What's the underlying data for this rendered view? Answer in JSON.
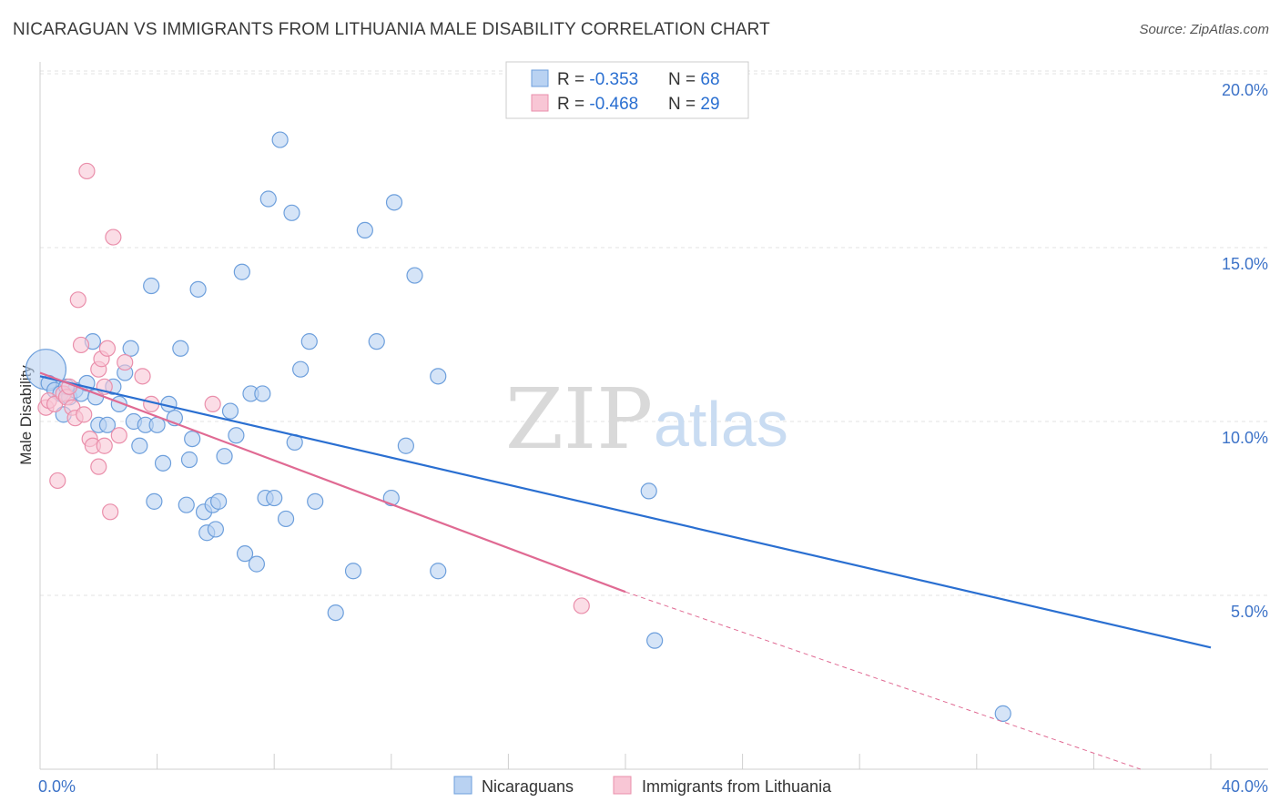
{
  "title": "NICARAGUAN VS IMMIGRANTS FROM LITHUANIA MALE DISABILITY CORRELATION CHART",
  "source": "Source: ZipAtlas.com",
  "watermark": {
    "zip": "ZIP",
    "atlas": "atlas"
  },
  "legend_top": [
    {
      "r_label": "R = ",
      "r_value": "-0.353",
      "n_label": "N = ",
      "n_value": "68"
    },
    {
      "r_label": "R = ",
      "r_value": "-0.468",
      "n_label": "N = ",
      "n_value": "29"
    }
  ],
  "chart_data": {
    "type": "scatter",
    "title": "NICARAGUAN VS IMMIGRANTS FROM LITHUANIA MALE DISABILITY CORRELATION CHART",
    "xlabel": "",
    "ylabel": "Male Disability",
    "xlim": [
      0,
      40
    ],
    "ylim": [
      0,
      20.8
    ],
    "x_tick_labels": [
      "0.0%",
      "40.0%"
    ],
    "y_ticks": [
      5,
      10,
      15,
      20
    ],
    "y_tick_labels": [
      "5.0%",
      "10.0%",
      "15.0%",
      "20.0%"
    ],
    "grid": true,
    "legend_position": "bottom-center",
    "colors": {
      "blue_fill": "#b9d2f2",
      "blue_stroke": "#6d9fdc",
      "blue_line": "#2a6fd1",
      "pink_fill": "#f8c6d5",
      "pink_stroke": "#ea8fab",
      "pink_line": "#e06a93",
      "tick_label": "#3d73c8"
    },
    "series": [
      {
        "name": "Nicaraguans",
        "r": -0.353,
        "n": 68,
        "trend": {
          "x0": 0,
          "y0": 11.3,
          "x1": 40,
          "y1": 3.5
        },
        "points": [
          {
            "x": 0.2,
            "y": 11.5,
            "big": true
          },
          {
            "x": 0.3,
            "y": 11.1
          },
          {
            "x": 0.5,
            "y": 10.9
          },
          {
            "x": 0.7,
            "y": 10.8
          },
          {
            "x": 0.8,
            "y": 10.2
          },
          {
            "x": 1.0,
            "y": 10.7
          },
          {
            "x": 1.2,
            "y": 10.9
          },
          {
            "x": 1.4,
            "y": 10.8
          },
          {
            "x": 1.6,
            "y": 11.1
          },
          {
            "x": 1.8,
            "y": 12.3
          },
          {
            "x": 1.9,
            "y": 10.7
          },
          {
            "x": 2.0,
            "y": 9.9
          },
          {
            "x": 2.3,
            "y": 9.9
          },
          {
            "x": 2.5,
            "y": 11.0
          },
          {
            "x": 2.7,
            "y": 10.5
          },
          {
            "x": 2.9,
            "y": 11.4
          },
          {
            "x": 3.1,
            "y": 12.1
          },
          {
            "x": 3.2,
            "y": 10.0
          },
          {
            "x": 3.4,
            "y": 9.3
          },
          {
            "x": 3.6,
            "y": 9.9
          },
          {
            "x": 3.8,
            "y": 13.9
          },
          {
            "x": 3.9,
            "y": 7.7
          },
          {
            "x": 4.0,
            "y": 9.9
          },
          {
            "x": 4.2,
            "y": 8.8
          },
          {
            "x": 4.4,
            "y": 10.5
          },
          {
            "x": 4.6,
            "y": 10.1
          },
          {
            "x": 4.8,
            "y": 12.1
          },
          {
            "x": 5.0,
            "y": 7.6
          },
          {
            "x": 5.1,
            "y": 8.9
          },
          {
            "x": 5.2,
            "y": 9.5
          },
          {
            "x": 5.4,
            "y": 13.8
          },
          {
            "x": 5.6,
            "y": 7.4
          },
          {
            "x": 5.7,
            "y": 6.8
          },
          {
            "x": 5.9,
            "y": 7.6
          },
          {
            "x": 6.0,
            "y": 6.9
          },
          {
            "x": 6.1,
            "y": 7.7
          },
          {
            "x": 6.3,
            "y": 9.0
          },
          {
            "x": 6.5,
            "y": 10.3
          },
          {
            "x": 6.7,
            "y": 9.6
          },
          {
            "x": 6.9,
            "y": 14.3
          },
          {
            "x": 7.0,
            "y": 6.2
          },
          {
            "x": 7.2,
            "y": 10.8
          },
          {
            "x": 7.4,
            "y": 5.9
          },
          {
            "x": 7.6,
            "y": 10.8
          },
          {
            "x": 7.7,
            "y": 7.8
          },
          {
            "x": 7.8,
            "y": 16.4
          },
          {
            "x": 8.0,
            "y": 7.8
          },
          {
            "x": 8.2,
            "y": 18.1
          },
          {
            "x": 8.4,
            "y": 7.2
          },
          {
            "x": 8.6,
            "y": 16.0
          },
          {
            "x": 8.7,
            "y": 9.4
          },
          {
            "x": 8.9,
            "y": 11.5
          },
          {
            "x": 9.2,
            "y": 12.3
          },
          {
            "x": 9.4,
            "y": 7.7
          },
          {
            "x": 10.1,
            "y": 4.5
          },
          {
            "x": 10.7,
            "y": 5.7
          },
          {
            "x": 11.1,
            "y": 15.5
          },
          {
            "x": 11.5,
            "y": 12.3
          },
          {
            "x": 12.0,
            "y": 7.8
          },
          {
            "x": 12.1,
            "y": 16.3
          },
          {
            "x": 12.5,
            "y": 9.3
          },
          {
            "x": 12.8,
            "y": 14.2
          },
          {
            "x": 13.6,
            "y": 5.7
          },
          {
            "x": 13.6,
            "y": 11.3
          },
          {
            "x": 20.8,
            "y": 8.0
          },
          {
            "x": 21.0,
            "y": 3.7
          },
          {
            "x": 32.9,
            "y": 1.6
          },
          {
            "x": 0.9,
            "y": 11.0
          }
        ]
      },
      {
        "name": "Immigrants from Lithuania",
        "r": -0.468,
        "n": 29,
        "trend": {
          "x0": 0,
          "y0": 11.4,
          "x1": 20,
          "y1": 5.1,
          "dash_x1": 37.6,
          "dash_y1": 0
        },
        "points": [
          {
            "x": 0.2,
            "y": 10.4
          },
          {
            "x": 0.3,
            "y": 10.6
          },
          {
            "x": 0.5,
            "y": 10.5
          },
          {
            "x": 0.6,
            "y": 8.3
          },
          {
            "x": 0.8,
            "y": 10.8
          },
          {
            "x": 0.9,
            "y": 10.7
          },
          {
            "x": 1.0,
            "y": 11.0
          },
          {
            "x": 1.1,
            "y": 10.4
          },
          {
            "x": 1.2,
            "y": 10.1
          },
          {
            "x": 1.3,
            "y": 13.5
          },
          {
            "x": 1.4,
            "y": 12.2
          },
          {
            "x": 1.5,
            "y": 10.2
          },
          {
            "x": 1.6,
            "y": 17.2
          },
          {
            "x": 1.7,
            "y": 9.5
          },
          {
            "x": 1.8,
            "y": 9.3
          },
          {
            "x": 2.0,
            "y": 11.5
          },
          {
            "x": 2.1,
            "y": 11.8
          },
          {
            "x": 2.2,
            "y": 9.3
          },
          {
            "x": 2.3,
            "y": 12.1
          },
          {
            "x": 2.0,
            "y": 8.7
          },
          {
            "x": 2.2,
            "y": 11.0
          },
          {
            "x": 2.4,
            "y": 7.4
          },
          {
            "x": 2.5,
            "y": 15.3
          },
          {
            "x": 2.7,
            "y": 9.6
          },
          {
            "x": 2.9,
            "y": 11.7
          },
          {
            "x": 3.5,
            "y": 11.3
          },
          {
            "x": 3.8,
            "y": 10.5
          },
          {
            "x": 5.9,
            "y": 10.5
          },
          {
            "x": 18.5,
            "y": 4.7
          }
        ]
      }
    ]
  }
}
